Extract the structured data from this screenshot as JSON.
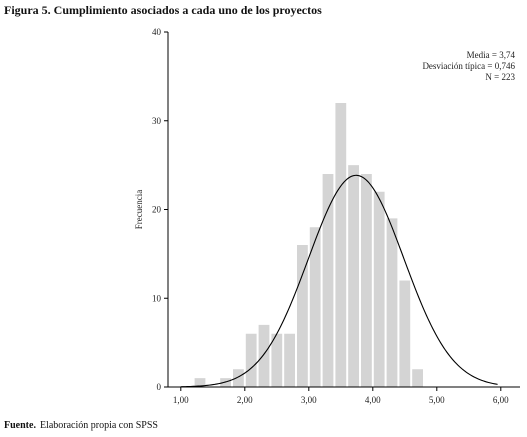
{
  "title": "Figura 5. Cumplimiento asociados a cada uno de los proyectos",
  "source": {
    "label": "Fuente.",
    "text": "Elaboración propia con SPSS"
  },
  "stats": [
    "Media = 3,74",
    "Desviación típica = 0,746",
    "N = 223"
  ],
  "colors": {
    "bar": "#d4d4d4",
    "curve": "#000000",
    "axis": "#000000"
  },
  "chart_data": {
    "type": "bar",
    "subtype": "histogram-with-normal-curve",
    "ylabel": "Frecuencia",
    "xlabel": "",
    "xlim": [
      0.8,
      6.3
    ],
    "ylim": [
      0,
      40
    ],
    "x_ticks": [
      1.0,
      2.0,
      3.0,
      4.0,
      5.0,
      6.0
    ],
    "x_tick_labels": [
      "1,00",
      "2,00",
      "3,00",
      "4,00",
      "5,00",
      "6,00"
    ],
    "y_ticks": [
      0,
      10,
      20,
      30,
      40
    ],
    "y_tick_labels": [
      "0",
      "10",
      "20",
      "30",
      "40"
    ],
    "bin_width": 0.2,
    "bin_starts": [
      1.0,
      1.2,
      1.4,
      1.6,
      1.8,
      2.0,
      2.2,
      2.4,
      2.6,
      2.8,
      3.0,
      3.2,
      3.4,
      3.6,
      3.8,
      4.0,
      4.2,
      4.4,
      4.6,
      4.8,
      5.0
    ],
    "values": [
      0,
      1,
      0,
      1,
      2,
      6,
      7,
      6,
      6,
      16,
      18,
      24,
      32,
      25,
      24,
      22,
      19,
      12,
      2,
      0,
      0
    ],
    "normal_curve": {
      "mean": 3.74,
      "sd": 0.746,
      "n": 223
    },
    "grid": false,
    "stats_position": "top-right"
  }
}
